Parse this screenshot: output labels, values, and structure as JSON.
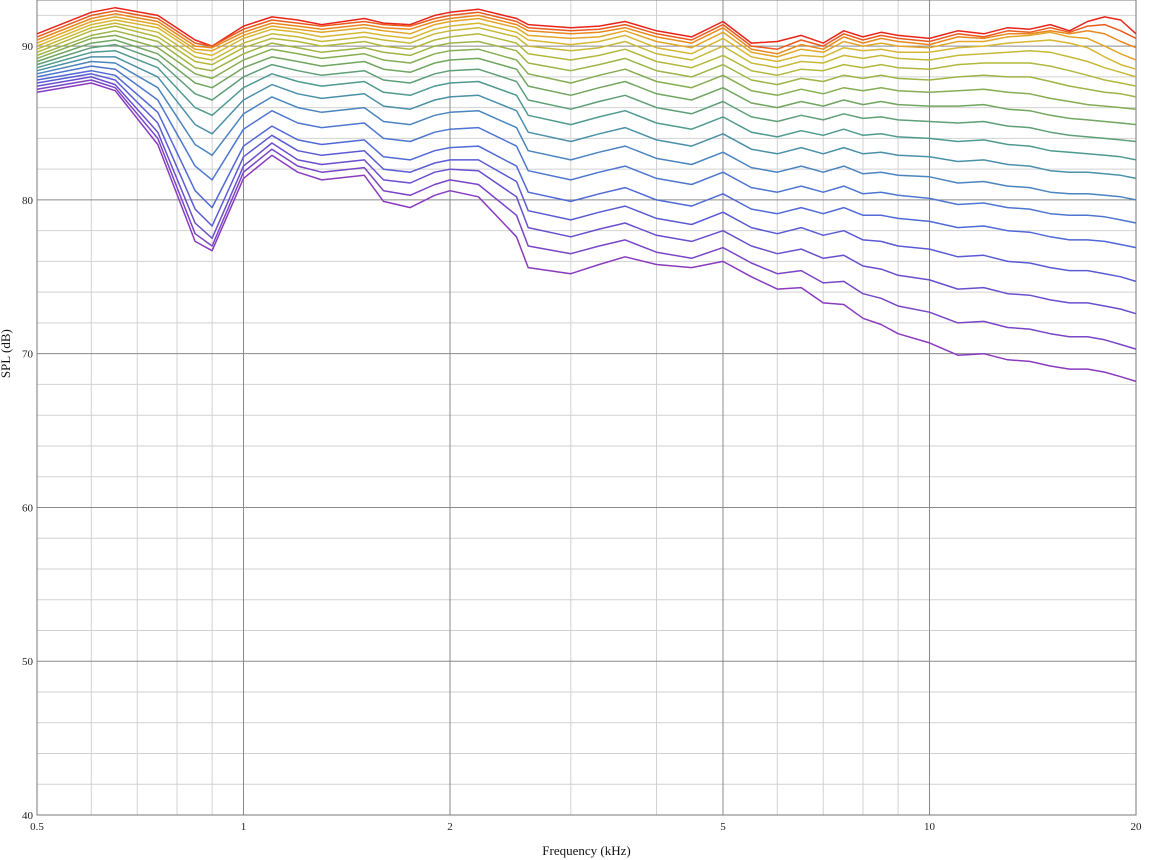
{
  "chart_data": {
    "type": "line",
    "title": "",
    "xlabel": "Frequency (kHz)",
    "ylabel": "SPL (dB)",
    "xscale": "log",
    "xlim": [
      0.5,
      20
    ],
    "ylim": [
      40,
      93
    ],
    "xticks": [
      0.5,
      1,
      2,
      5,
      10,
      20
    ],
    "xtick_labels": [
      "0.5",
      "1",
      "2",
      "5",
      "10",
      "20"
    ],
    "xminor": [
      0.6,
      0.7,
      0.8,
      0.9,
      3,
      4,
      6,
      7,
      8,
      9
    ],
    "yticks": [
      40,
      50,
      60,
      70,
      80,
      90
    ],
    "ytick_labels": [
      "40",
      "50",
      "60",
      "70",
      "80",
      "90"
    ],
    "yminor_step": 2,
    "grid": true,
    "legend": "none",
    "colors": [
      "#e8241a",
      "#e95a1e",
      "#e7891f",
      "#e2a62a",
      "#d7b733",
      "#c6b938",
      "#b2b83d",
      "#9db446",
      "#86ad52",
      "#70a65f",
      "#5e9f78",
      "#4f9a8f",
      "#4a90a8",
      "#4b84bf",
      "#4d76d0",
      "#5069d7",
      "#5a5bd4",
      "#6a4fcd",
      "#7a45c6",
      "#8a3bbe"
    ],
    "x": [
      0.5,
      0.6,
      0.65,
      0.75,
      0.85,
      0.9,
      1,
      1.1,
      1.2,
      1.3,
      1.5,
      1.6,
      1.75,
      1.9,
      2,
      2.2,
      2.5,
      2.6,
      3,
      3.3,
      3.6,
      4,
      4.5,
      5,
      5.5,
      6,
      6.5,
      7,
      7.5,
      8,
      8.5,
      9,
      10,
      11,
      12,
      13,
      14,
      15,
      16,
      17,
      18,
      19,
      20
    ],
    "series": [
      {
        "values": [
          90.8,
          92.2,
          92.5,
          92.0,
          90.4,
          90.0,
          91.3,
          91.9,
          91.7,
          91.4,
          91.8,
          91.5,
          91.4,
          92.0,
          92.2,
          92.4,
          91.8,
          91.4,
          91.2,
          91.3,
          91.6,
          91.0,
          90.6,
          91.6,
          90.2,
          90.3,
          90.7,
          90.2,
          91.0,
          90.6,
          90.9,
          90.7,
          90.5,
          91.0,
          90.8,
          91.2,
          91.1,
          91.4,
          91.0,
          91.6,
          91.9,
          91.7,
          90.8
        ]
      },
      {
        "values": [
          90.6,
          92.0,
          92.3,
          91.8,
          90.2,
          90.0,
          91.1,
          91.7,
          91.5,
          91.3,
          91.6,
          91.4,
          91.3,
          91.8,
          92.0,
          92.2,
          91.6,
          91.2,
          91.0,
          91.1,
          91.4,
          90.8,
          90.4,
          91.4,
          90.0,
          89.8,
          90.4,
          90.0,
          90.8,
          90.4,
          90.7,
          90.5,
          90.3,
          90.8,
          90.6,
          91.0,
          90.9,
          91.2,
          90.9,
          91.3,
          91.4,
          91.0,
          90.5
        ]
      },
      {
        "values": [
          90.4,
          91.8,
          92.1,
          91.6,
          90.0,
          89.9,
          90.9,
          91.5,
          91.3,
          91.1,
          91.4,
          91.2,
          91.1,
          91.6,
          91.8,
          92.0,
          91.4,
          91.0,
          90.8,
          90.9,
          91.2,
          90.6,
          90.2,
          91.2,
          89.8,
          89.5,
          90.1,
          89.8,
          90.6,
          90.2,
          90.5,
          90.3,
          90.1,
          90.6,
          90.5,
          90.8,
          90.8,
          91.0,
          90.8,
          91.0,
          90.8,
          90.3,
          89.9
        ]
      },
      {
        "values": [
          90.2,
          91.6,
          91.9,
          91.4,
          89.8,
          89.7,
          90.7,
          91.3,
          91.1,
          90.9,
          91.2,
          91.0,
          90.8,
          91.4,
          91.6,
          91.8,
          91.2,
          90.7,
          90.5,
          90.6,
          91.0,
          90.3,
          89.9,
          90.9,
          89.6,
          89.3,
          89.8,
          89.6,
          90.3,
          90.0,
          90.2,
          90.0,
          89.9,
          90.3,
          90.3,
          90.6,
          90.7,
          90.9,
          90.6,
          90.5,
          90.0,
          89.5,
          89.1
        ]
      },
      {
        "values": [
          90.0,
          91.4,
          91.7,
          91.2,
          89.6,
          89.4,
          90.5,
          91.1,
          90.9,
          90.6,
          90.9,
          90.7,
          90.5,
          91.1,
          91.3,
          91.5,
          90.9,
          90.4,
          90.1,
          90.3,
          90.7,
          89.9,
          89.5,
          90.5,
          89.3,
          89.0,
          89.4,
          89.3,
          89.9,
          89.7,
          89.8,
          89.6,
          89.6,
          89.9,
          90.0,
          90.2,
          90.3,
          90.4,
          90.2,
          89.9,
          89.3,
          88.8,
          88.5
        ]
      },
      {
        "values": [
          89.8,
          91.2,
          91.5,
          90.9,
          89.3,
          89.1,
          90.2,
          90.8,
          90.6,
          90.3,
          90.6,
          90.4,
          90.2,
          90.8,
          91.0,
          91.2,
          90.6,
          90.0,
          89.7,
          89.9,
          90.3,
          89.5,
          89.1,
          90.0,
          88.9,
          88.6,
          89.0,
          88.9,
          89.4,
          89.2,
          89.4,
          89.2,
          89.1,
          89.4,
          89.5,
          89.6,
          89.7,
          89.6,
          89.3,
          89.0,
          88.6,
          88.3,
          88.0
        ]
      },
      {
        "values": [
          89.6,
          91.0,
          91.3,
          90.6,
          89.0,
          88.8,
          89.9,
          90.5,
          90.3,
          90.0,
          90.3,
          90.0,
          89.8,
          90.4,
          90.6,
          90.8,
          90.2,
          89.5,
          89.1,
          89.4,
          89.8,
          89.0,
          88.6,
          89.4,
          88.4,
          88.1,
          88.5,
          88.4,
          88.8,
          88.6,
          88.8,
          88.6,
          88.5,
          88.8,
          88.9,
          88.9,
          88.9,
          88.7,
          88.4,
          88.1,
          87.8,
          87.6,
          87.4
        ]
      },
      {
        "values": [
          89.4,
          90.7,
          91.0,
          90.3,
          88.6,
          88.4,
          89.5,
          90.2,
          89.9,
          89.6,
          89.9,
          89.6,
          89.4,
          90.0,
          90.2,
          90.3,
          89.7,
          88.9,
          88.4,
          88.8,
          89.2,
          88.4,
          88.0,
          88.8,
          87.8,
          87.5,
          87.9,
          87.7,
          88.1,
          87.9,
          88.1,
          87.9,
          87.8,
          88.0,
          88.1,
          88.0,
          88.0,
          87.7,
          87.4,
          87.2,
          87.0,
          86.9,
          86.7
        ]
      },
      {
        "values": [
          89.2,
          90.5,
          90.7,
          89.9,
          88.2,
          87.9,
          89.1,
          89.8,
          89.5,
          89.2,
          89.5,
          89.1,
          88.9,
          89.5,
          89.7,
          89.8,
          89.1,
          88.2,
          87.6,
          88.1,
          88.5,
          87.7,
          87.3,
          88.1,
          87.1,
          86.8,
          87.2,
          86.9,
          87.3,
          87.1,
          87.3,
          87.1,
          87.0,
          87.1,
          87.2,
          87.0,
          86.9,
          86.6,
          86.4,
          86.2,
          86.1,
          86.0,
          85.9
        ]
      },
      {
        "values": [
          89.0,
          90.2,
          90.4,
          89.5,
          87.6,
          87.3,
          88.6,
          89.3,
          89.0,
          88.7,
          89.0,
          88.5,
          88.3,
          88.9,
          89.1,
          89.2,
          88.5,
          87.4,
          86.8,
          87.3,
          87.7,
          86.9,
          86.5,
          87.3,
          86.3,
          86.0,
          86.4,
          86.1,
          86.5,
          86.2,
          86.4,
          86.2,
          86.1,
          86.1,
          86.2,
          85.9,
          85.8,
          85.5,
          85.3,
          85.2,
          85.1,
          85.0,
          84.9
        ]
      },
      {
        "values": [
          88.8,
          89.9,
          90.1,
          89.1,
          86.9,
          86.5,
          88.0,
          88.8,
          88.4,
          88.1,
          88.4,
          87.8,
          87.6,
          88.2,
          88.4,
          88.5,
          87.7,
          86.5,
          85.9,
          86.4,
          86.8,
          86.0,
          85.6,
          86.4,
          85.4,
          85.1,
          85.5,
          85.2,
          85.6,
          85.3,
          85.4,
          85.2,
          85.1,
          85.0,
          85.1,
          84.8,
          84.7,
          84.4,
          84.2,
          84.1,
          84.0,
          83.9,
          83.8
        ]
      },
      {
        "values": [
          88.6,
          89.6,
          89.7,
          88.6,
          86.0,
          85.5,
          87.3,
          88.2,
          87.7,
          87.4,
          87.7,
          87.0,
          86.8,
          87.4,
          87.6,
          87.7,
          86.8,
          85.5,
          84.9,
          85.4,
          85.8,
          85.0,
          84.6,
          85.4,
          84.4,
          84.1,
          84.5,
          84.2,
          84.6,
          84.2,
          84.3,
          84.1,
          84.0,
          83.8,
          83.9,
          83.6,
          83.5,
          83.2,
          83.1,
          83.0,
          82.9,
          82.8,
          82.6
        ]
      },
      {
        "values": [
          88.4,
          89.3,
          89.3,
          88.0,
          84.9,
          84.3,
          86.5,
          87.5,
          86.9,
          86.6,
          86.9,
          86.1,
          85.9,
          86.5,
          86.7,
          86.8,
          85.8,
          84.4,
          83.8,
          84.3,
          84.7,
          83.9,
          83.5,
          84.3,
          83.3,
          83.0,
          83.4,
          83.0,
          83.4,
          83.0,
          83.1,
          82.9,
          82.8,
          82.5,
          82.6,
          82.3,
          82.2,
          81.9,
          81.8,
          81.8,
          81.7,
          81.6,
          81.4
        ]
      },
      {
        "values": [
          88.2,
          89.0,
          88.9,
          87.3,
          83.6,
          82.9,
          85.6,
          86.7,
          86.0,
          85.7,
          86.0,
          85.1,
          84.9,
          85.5,
          85.7,
          85.8,
          84.7,
          83.2,
          82.6,
          83.1,
          83.5,
          82.7,
          82.3,
          83.1,
          82.1,
          81.8,
          82.2,
          81.8,
          82.2,
          81.7,
          81.8,
          81.6,
          81.5,
          81.1,
          81.2,
          80.9,
          80.8,
          80.5,
          80.4,
          80.4,
          80.3,
          80.2,
          80.0
        ]
      },
      {
        "values": [
          88.0,
          88.7,
          88.5,
          86.5,
          82.2,
          81.3,
          84.6,
          85.8,
          85.0,
          84.7,
          85.0,
          84.0,
          83.8,
          84.4,
          84.6,
          84.7,
          83.5,
          81.9,
          81.3,
          81.8,
          82.2,
          81.4,
          81.0,
          81.8,
          80.8,
          80.5,
          80.9,
          80.5,
          80.9,
          80.4,
          80.5,
          80.3,
          80.1,
          79.7,
          79.8,
          79.5,
          79.4,
          79.1,
          79.0,
          79.0,
          78.9,
          78.7,
          78.5
        ]
      },
      {
        "values": [
          87.8,
          88.4,
          88.1,
          85.7,
          80.6,
          79.5,
          83.5,
          84.8,
          83.9,
          83.6,
          83.9,
          82.8,
          82.6,
          83.2,
          83.4,
          83.5,
          82.2,
          80.5,
          79.9,
          80.4,
          80.8,
          80.0,
          79.6,
          80.4,
          79.4,
          79.1,
          79.5,
          79.1,
          79.5,
          79.0,
          79.0,
          78.8,
          78.6,
          78.2,
          78.3,
          78.0,
          77.9,
          77.6,
          77.4,
          77.4,
          77.3,
          77.1,
          76.9
        ]
      },
      {
        "values": [
          87.6,
          88.2,
          87.8,
          85.0,
          79.4,
          78.3,
          82.8,
          84.2,
          83.2,
          82.9,
          83.2,
          82.0,
          81.8,
          82.4,
          82.6,
          82.6,
          81.2,
          79.3,
          78.7,
          79.2,
          79.6,
          78.8,
          78.4,
          79.2,
          78.2,
          77.8,
          78.2,
          77.7,
          78.0,
          77.4,
          77.3,
          77.0,
          76.8,
          76.3,
          76.4,
          76.0,
          75.9,
          75.6,
          75.4,
          75.4,
          75.2,
          75.0,
          74.7
        ]
      },
      {
        "values": [
          87.4,
          88.0,
          87.5,
          84.4,
          78.5,
          77.5,
          82.2,
          83.7,
          82.6,
          82.3,
          82.6,
          81.3,
          81.1,
          81.8,
          82.0,
          81.9,
          80.2,
          78.2,
          77.6,
          78.1,
          78.5,
          77.7,
          77.3,
          78.0,
          77.0,
          76.5,
          76.8,
          76.2,
          76.4,
          75.7,
          75.5,
          75.1,
          74.8,
          74.2,
          74.3,
          73.9,
          73.8,
          73.5,
          73.3,
          73.3,
          73.1,
          72.9,
          72.6
        ]
      },
      {
        "values": [
          87.2,
          87.8,
          87.3,
          84.0,
          77.8,
          77.0,
          81.8,
          83.3,
          82.2,
          81.8,
          82.1,
          80.6,
          80.3,
          81.0,
          81.3,
          81.0,
          79.0,
          77.0,
          76.5,
          77.0,
          77.4,
          76.6,
          76.2,
          76.9,
          75.9,
          75.2,
          75.4,
          74.6,
          74.7,
          73.9,
          73.6,
          73.1,
          72.7,
          72.0,
          72.1,
          71.7,
          71.6,
          71.3,
          71.1,
          71.1,
          70.9,
          70.6,
          70.3
        ]
      },
      {
        "values": [
          87.0,
          87.6,
          87.1,
          83.6,
          77.3,
          76.7,
          81.4,
          82.9,
          81.8,
          81.3,
          81.6,
          79.9,
          79.5,
          80.3,
          80.6,
          80.2,
          77.6,
          75.6,
          75.2,
          75.8,
          76.3,
          75.8,
          75.6,
          76.0,
          75.0,
          74.2,
          74.3,
          73.3,
          73.2,
          72.3,
          71.9,
          71.3,
          70.7,
          69.9,
          70.0,
          69.6,
          69.5,
          69.2,
          69.0,
          69.0,
          68.8,
          68.5,
          68.2
        ]
      }
    ]
  }
}
